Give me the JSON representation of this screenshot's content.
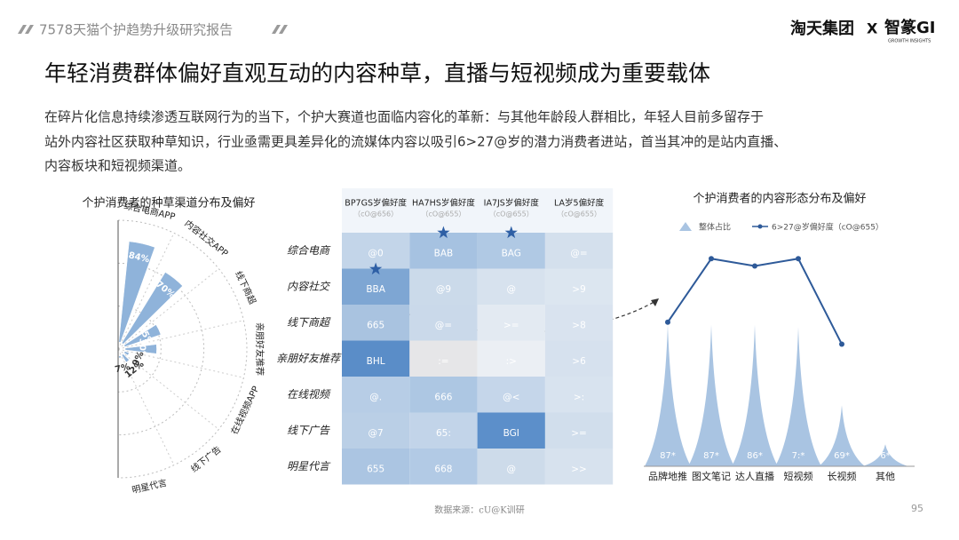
{
  "header": {
    "report": "7578天猫个护趋势升级研究报告",
    "brand": "淘天集团",
    "x": "X",
    "partner": "智篆GI",
    "partner_sub": "GROWTH INSIGHTS"
  },
  "title": "年轻消费群体偏好直观互动的内容种草，直播与短视频成为重要载体",
  "paragraph": [
    "在碎片化信息持续渗透互联网行为的当下，个护大赛道也面临内容化的革新：与其他年龄段人群相比，年轻人目前多留存于",
    "站外内容社区获取种草知识，行业亟需更具差异化的流媒体内容以吸引6>27@岁的潜力消费者进站，首当其冲的是站内直播、",
    "内容板块和短视频渠道。"
  ],
  "chart_data": [
    {
      "type": "radial_bar",
      "title": "个护消费者的种草渠道分布及偏好",
      "categories": [
        "综合电商APP",
        "内容社交APP",
        "线下商超",
        "亲朋好友推荐",
        "在线视频APP",
        "线下广告",
        "明星代言"
      ],
      "values": [
        84,
        70,
        35,
        30,
        9,
        12,
        7
      ],
      "value_labels": [
        "84%",
        "70%",
        "35%",
        "30%",
        "9%",
        "12%",
        "7%"
      ],
      "ylim": [
        0,
        100
      ],
      "color": "#8fb3da"
    },
    {
      "type": "heatmap",
      "columns": [
        {
          "label": "BP7GS岁偏好度",
          "sub": "（cO@656）"
        },
        {
          "label": "HA7HS岁偏好度",
          "sub": "（cO@655）"
        },
        {
          "label": "IA7JS岁偏好度",
          "sub": "（cO@655）"
        },
        {
          "label": "LA岁5偏好度",
          "sub": "（cO@655）"
        }
      ],
      "rows": [
        "综合电商",
        "内容社交",
        "线下商超",
        "亲朋好友推荐",
        "在线视频",
        "线下广告",
        "明星代言"
      ],
      "cells": [
        [
          "@0",
          "BAB",
          "BAG",
          "@="
        ],
        [
          "BBA",
          "@9",
          "@",
          ">9"
        ],
        [
          "665",
          "@=",
          ">=",
          ">8"
        ],
        [
          "BHL",
          ":=",
          ":>",
          ">6"
        ],
        [
          "@.",
          "666",
          "@<",
          ">:"
        ],
        [
          "@7",
          "65:",
          "BGI",
          ">="
        ],
        [
          "655",
          "668",
          "@",
          ">>"
        ]
      ],
      "colors": [
        [
          "#c3d5e9",
          "#a6c2e1",
          "#b0c9e4",
          "#d4e0ed"
        ],
        [
          "#7ea6d3",
          "#cbdaea",
          "#d7e2ee",
          "#dce6f0"
        ],
        [
          "#a9c3e0",
          "#cad9ea",
          "#e3eaf2",
          "#d9e3ef"
        ],
        [
          "#5a8dc8",
          "#e6e6e8",
          "#ebeff4",
          "#d6e1ee"
        ],
        [
          "#b7cde6",
          "#adc7e3",
          "#c5d6ea",
          "#d8e3ef"
        ],
        [
          "#bacfe6",
          "#c2d4e9",
          "#5c8fca",
          "#d1deec"
        ],
        [
          "#abc5e2",
          "#b2cae5",
          "#cddbea",
          "#d7e2ee"
        ]
      ]
    },
    {
      "type": "peak_line",
      "title": "个护消费者的内容形态分布及偏好",
      "categories": [
        "品牌地推",
        "图文笔记",
        "达人直播",
        "短视频",
        "长视频",
        "其他"
      ],
      "ylim": [
        0,
        100
      ],
      "series": [
        {
          "name": "整体占比",
          "type": "area",
          "color": "#a9c4e2",
          "values": [
            58,
            58,
            58,
            57,
            25,
            9
          ],
          "value_labels": [
            "87*",
            "87*",
            "86*",
            "7:*",
            "69*",
            "6*"
          ]
        },
        {
          "name": "6>27@岁偏好度（cO@655）",
          "type": "line",
          "color": "#2e5a99",
          "values": [
            59,
            85,
            82,
            85,
            50,
            null
          ]
        }
      ]
    }
  ],
  "footer": {
    "source": "数据来源：cU@K训研",
    "page": "95"
  }
}
